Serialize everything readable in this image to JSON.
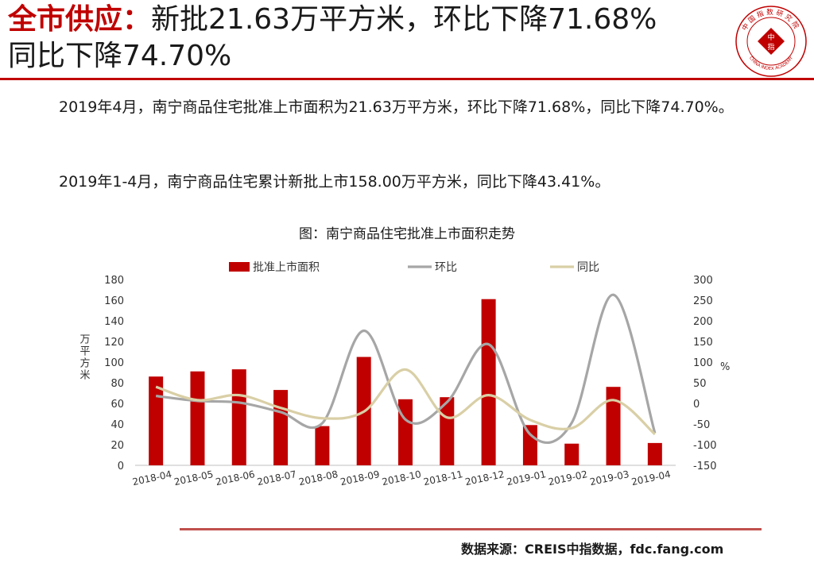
{
  "header": {
    "title_highlight": "全市供应：",
    "title_line1_rest": "新批21.63万平方米，环比下降71.68%",
    "title_line2": "同比下降74.70%",
    "logo_text_top": "中国指数研究院",
    "logo_text_bottom": "CHINA INDEX ACADEMY",
    "logo_center_1": "中",
    "logo_center_2": "指"
  },
  "body": {
    "paragraph1": "2019年4月，南宁商品住宅批准上市面积为21.63万平方米，环比下降71.68%，同比下降74.70%。",
    "paragraph2": "2019年1-4月，南宁商品住宅累计新批上市158.00万平方米，同比下降43.41%。"
  },
  "colors": {
    "accent": "#c00000",
    "bar": "#c00000",
    "mom_line": "#a6a6a6",
    "yoy_line": "#d9cfa6",
    "footer_rule": "#c0504d"
  },
  "chart_data": {
    "type": "bar",
    "title": "图：南宁商品住宅批准上市面积走势",
    "categories": [
      "2018-04",
      "2018-05",
      "2018-06",
      "2018-07",
      "2018-08",
      "2018-09",
      "2018-10",
      "2018-11",
      "2018-12",
      "2019-01",
      "2019-02",
      "2019-03",
      "2019-04"
    ],
    "series": [
      {
        "name": "批准上市面积",
        "type": "bar",
        "axis": "left",
        "values": [
          86,
          91,
          93,
          73,
          38,
          105,
          64,
          66,
          161,
          39,
          21,
          76,
          21.63
        ]
      },
      {
        "name": "环比",
        "type": "line",
        "axis": "right",
        "values": [
          18,
          6,
          2,
          -21,
          -48,
          176,
          -39,
          3,
          143,
          -75,
          -47,
          263,
          -71.68
        ]
      },
      {
        "name": "同比",
        "type": "line",
        "axis": "right",
        "values": [
          40,
          8,
          20,
          -11,
          -36,
          -20,
          82,
          -34,
          20,
          -40,
          -60,
          8,
          -74.7
        ]
      }
    ],
    "ylabel": "万平方米",
    "y2label": "%",
    "ylim": [
      0,
      180
    ],
    "y_ticks": [
      0,
      20,
      40,
      60,
      80,
      100,
      120,
      140,
      160,
      180
    ],
    "y2lim": [
      -150,
      300
    ],
    "y2_ticks": [
      -150,
      -100,
      -50,
      0,
      50,
      100,
      150,
      200,
      250,
      300
    ],
    "grid": false,
    "legend_position": "top"
  },
  "footer": {
    "source": "数据来源：CREIS中指数据，fdc.fang.com"
  }
}
